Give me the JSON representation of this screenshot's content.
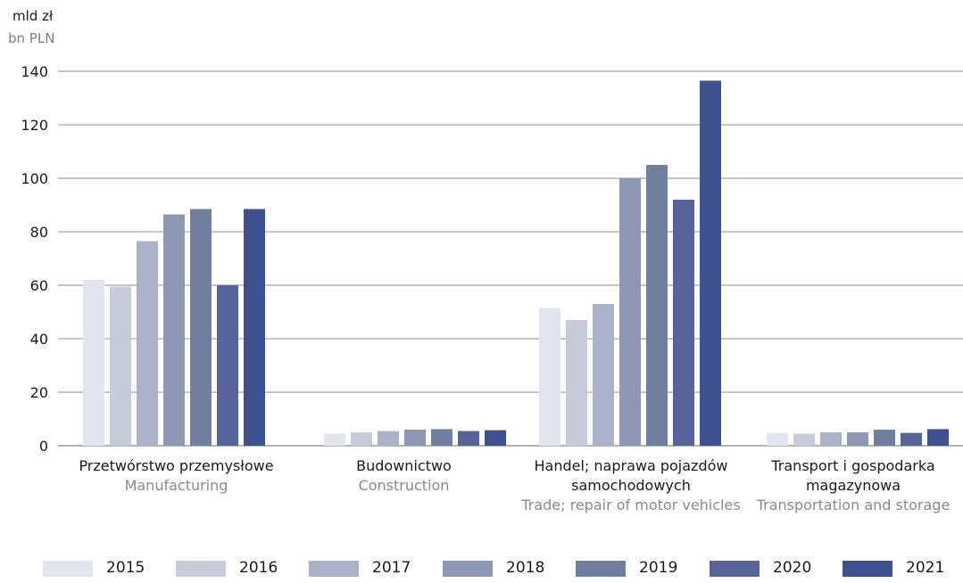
{
  "unit": {
    "pl": "mld zł",
    "en": "bn PLN"
  },
  "chart_data": {
    "type": "bar",
    "categories": [
      {
        "pl": "Przetwórstwo przemysłowe",
        "en": "Manufacturing"
      },
      {
        "pl": "Budownictwo",
        "en": "Construction"
      },
      {
        "pl": "Handel; naprawa pojazdów samochodowych",
        "en": "Trade; repair of motor vehicles"
      },
      {
        "pl": "Transport i gospodarka magazynowa",
        "en": "Transportation and storage"
      }
    ],
    "series": [
      {
        "name": "2015",
        "color": "#e3e5ee",
        "values": [
          62,
          4.5,
          51.5,
          4.8
        ]
      },
      {
        "name": "2016",
        "color": "#c8ccda",
        "values": [
          59.5,
          5,
          47,
          4.5
        ]
      },
      {
        "name": "2017",
        "color": "#aab1c8",
        "values": [
          76.5,
          5.5,
          53,
          5
        ]
      },
      {
        "name": "2018",
        "color": "#8e98b5",
        "values": [
          86.5,
          6,
          100,
          5
        ]
      },
      {
        "name": "2019",
        "color": "#707ea0",
        "values": [
          88.5,
          6.2,
          105,
          6
        ]
      },
      {
        "name": "2020",
        "color": "#56649a",
        "values": [
          60,
          5.5,
          92,
          4.8
        ]
      },
      {
        "name": "2021",
        "color": "#3d5090",
        "values": [
          88.5,
          5.8,
          136.5,
          6.2
        ]
      }
    ],
    "ylim": [
      0,
      140
    ],
    "yticks": [
      0,
      20,
      40,
      60,
      80,
      100,
      120,
      140
    ],
    "grid": true,
    "legend_position": "bottom"
  }
}
